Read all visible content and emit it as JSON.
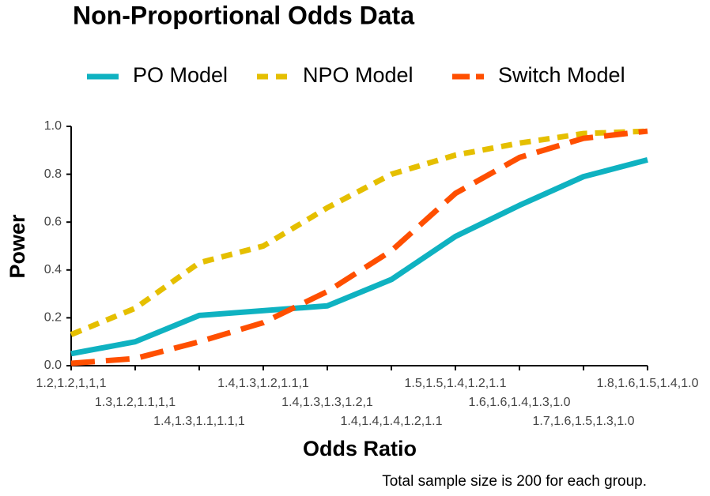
{
  "chart_data": {
    "type": "line",
    "title": "Non-Proportional Odds Data",
    "x_label": "Odds Ratio",
    "y_label": "Power",
    "caption": "Total sample size is 200 for each group.",
    "categories": [
      "1.2,1.2,1,1,1",
      "1.3,1.2,1.1,1,1",
      "1.4,1.3,1.1,1.1,1",
      "1.4,1.3,1.2,1.1,1",
      "1.4,1.3,1.3,1.2,1",
      "1.4,1.4,1.4,1.2,1.1",
      "1.5,1.5,1.4,1.2,1.1",
      "1.6,1.6,1.4,1.3,1.0",
      "1.7,1.6,1.5,1.3,1.0",
      "1.8,1.6,1.5,1.4,1.0"
    ],
    "series": [
      {
        "name": "PO Model",
        "color": "#0fb2c1",
        "dash": "solid",
        "values": [
          0.05,
          0.1,
          0.21,
          0.23,
          0.25,
          0.36,
          0.54,
          0.67,
          0.79,
          0.86
        ]
      },
      {
        "name": "NPO Model",
        "color": "#e5bf00",
        "dash": "short",
        "values": [
          0.13,
          0.24,
          0.43,
          0.5,
          0.66,
          0.8,
          0.88,
          0.93,
          0.97,
          0.98
        ]
      },
      {
        "name": "Switch Model",
        "color": "#ff4f00",
        "dash": "long",
        "values": [
          0.01,
          0.03,
          0.1,
          0.18,
          0.31,
          0.48,
          0.72,
          0.87,
          0.95,
          0.98
        ]
      }
    ],
    "ylim": [
      0,
      1
    ],
    "yticks": [
      {
        "value": 0,
        "label": "0.0"
      },
      0.2,
      0.4,
      0.6,
      0.8,
      {
        "value": 1,
        "label": "1.0"
      }
    ],
    "legend": "top"
  }
}
